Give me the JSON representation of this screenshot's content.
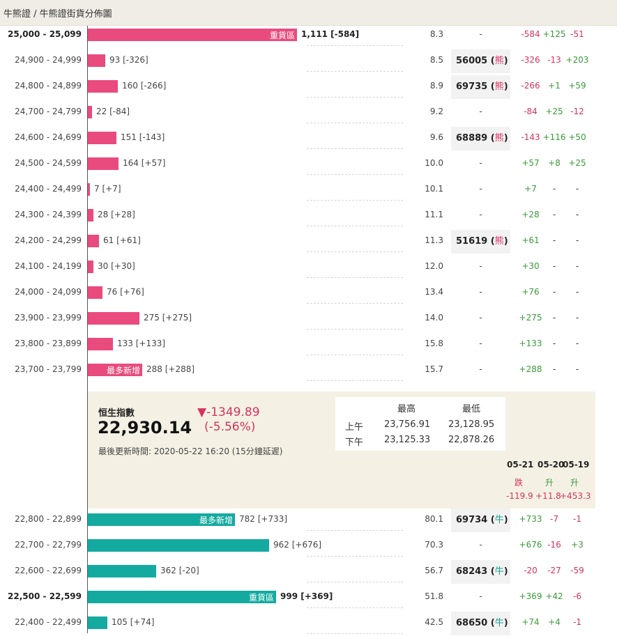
{
  "breadcrumb": "牛熊證 / 牛熊證街貨分佈圖",
  "colors": {
    "bear": "#e94b7e",
    "bull": "#15aaa0",
    "down": "#d6325f",
    "up": "#3a9a3a"
  },
  "bear_rows": [
    {
      "range": "25,000 - 25,099",
      "bold": true,
      "size": 1111,
      "count_text": "1,111 [-584]",
      "tag": "重貨區",
      "pct": "8.3",
      "code": "",
      "code_type": "",
      "d1": "-584",
      "d2": "+125",
      "d3": "-51"
    },
    {
      "range": "24,900 - 24,999",
      "bold": false,
      "size": 93,
      "count_text": "93 [-326]",
      "tag": "",
      "pct": "8.5",
      "code": "56005",
      "code_type": "熊",
      "d1": "-326",
      "d2": "-13",
      "d3": "+203"
    },
    {
      "range": "24,800 - 24,899",
      "bold": false,
      "size": 160,
      "count_text": "160 [-266]",
      "tag": "",
      "pct": "8.9",
      "code": "69735",
      "code_type": "熊",
      "d1": "-266",
      "d2": "+1",
      "d3": "+59"
    },
    {
      "range": "24,700 - 24,799",
      "bold": false,
      "size": 22,
      "count_text": "22 [-84]",
      "tag": "",
      "pct": "9.2",
      "code": "",
      "code_type": "",
      "d1": "-84",
      "d2": "+25",
      "d3": "-12"
    },
    {
      "range": "24,600 - 24,699",
      "bold": false,
      "size": 151,
      "count_text": "151 [-143]",
      "tag": "",
      "pct": "9.6",
      "code": "68889",
      "code_type": "熊",
      "d1": "-143",
      "d2": "+116",
      "d3": "+50"
    },
    {
      "range": "24,500 - 24,599",
      "bold": false,
      "size": 164,
      "count_text": "164 [+57]",
      "tag": "",
      "pct": "10.0",
      "code": "",
      "code_type": "",
      "d1": "+57",
      "d2": "+8",
      "d3": "+25"
    },
    {
      "range": "24,400 - 24,499",
      "bold": false,
      "size": 7,
      "count_text": "7 [+7]",
      "tag": "",
      "pct": "10.1",
      "code": "",
      "code_type": "",
      "d1": "+7",
      "d2": "-",
      "d3": "-"
    },
    {
      "range": "24,300 - 24,399",
      "bold": false,
      "size": 28,
      "count_text": "28 [+28]",
      "tag": "",
      "pct": "11.1",
      "code": "",
      "code_type": "",
      "d1": "+28",
      "d2": "-",
      "d3": "-"
    },
    {
      "range": "24,200 - 24,299",
      "bold": false,
      "size": 61,
      "count_text": "61 [+61]",
      "tag": "",
      "pct": "11.3",
      "code": "51619",
      "code_type": "熊",
      "d1": "+61",
      "d2": "-",
      "d3": "-"
    },
    {
      "range": "24,100 - 24,199",
      "bold": false,
      "size": 30,
      "count_text": "30 [+30]",
      "tag": "",
      "pct": "12.0",
      "code": "",
      "code_type": "",
      "d1": "+30",
      "d2": "-",
      "d3": "-"
    },
    {
      "range": "24,000 - 24,099",
      "bold": false,
      "size": 76,
      "count_text": "76 [+76]",
      "tag": "",
      "pct": "13.4",
      "code": "",
      "code_type": "",
      "d1": "+76",
      "d2": "-",
      "d3": "-"
    },
    {
      "range": "23,900 - 23,999",
      "bold": false,
      "size": 275,
      "count_text": "275 [+275]",
      "tag": "",
      "pct": "14.0",
      "code": "",
      "code_type": "",
      "d1": "+275",
      "d2": "-",
      "d3": "-"
    },
    {
      "range": "23,800 - 23,899",
      "bold": false,
      "size": 133,
      "count_text": "133 [+133]",
      "tag": "",
      "pct": "15.8",
      "code": "",
      "code_type": "",
      "d1": "+133",
      "d2": "-",
      "d3": "-"
    },
    {
      "range": "23,700 - 23,799",
      "bold": false,
      "size": 288,
      "count_text": "288 [+288]",
      "tag": "最多新增",
      "pct": "15.7",
      "code": "",
      "code_type": "",
      "d1": "+288",
      "d2": "-",
      "d3": "-"
    }
  ],
  "index": {
    "label": "恒生指數",
    "value": "22,930.14",
    "change": "▼-1349.89",
    "change_pct": "(-5.56%)",
    "updated": "最後更新時間: 2020-05-22 16:20 (15分鐘延遲)",
    "hl_header_high": "最高",
    "hl_header_low": "最低",
    "am_label": "上午",
    "am_high": "23,756.91",
    "am_low": "23,128.95",
    "pm_label": "下午",
    "pm_high": "23,125.33",
    "pm_low": "22,878.26"
  },
  "history": [
    {
      "date": "05-21",
      "word": "跌",
      "dir": "down",
      "value": "-119.9"
    },
    {
      "date": "05-20",
      "word": "升",
      "dir": "up",
      "value": "+11.8"
    },
    {
      "date": "05-19",
      "word": "升",
      "dir": "up",
      "value": "+453.3"
    }
  ],
  "bull_rows": [
    {
      "range": "22,800 - 22,899",
      "bold": false,
      "size": 782,
      "count_text": "782 [+733]",
      "tag": "最多新增",
      "pct": "80.1",
      "code": "69734",
      "code_type": "牛",
      "d1": "+733",
      "d2": "-7",
      "d3": "-1"
    },
    {
      "range": "22,700 - 22,799",
      "bold": false,
      "size": 962,
      "count_text": "962 [+676]",
      "tag": "",
      "pct": "70.3",
      "code": "",
      "code_type": "",
      "d1": "+676",
      "d2": "-16",
      "d3": "+3"
    },
    {
      "range": "22,600 - 22,699",
      "bold": false,
      "size": 362,
      "count_text": "362 [-20]",
      "tag": "",
      "pct": "56.7",
      "code": "68243",
      "code_type": "牛",
      "d1": "-20",
      "d2": "-27",
      "d3": "-59"
    },
    {
      "range": "22,500 - 22,599",
      "bold": true,
      "size": 999,
      "count_text": "999 [+369]",
      "tag": "重貨區",
      "pct": "51.8",
      "code": "",
      "code_type": "",
      "d1": "+369",
      "d2": "+42",
      "d3": "-6"
    },
    {
      "range": "22,400 - 22,499",
      "bold": false,
      "size": 105,
      "count_text": "105 [+74]",
      "tag": "",
      "pct": "42.5",
      "code": "68650",
      "code_type": "牛",
      "d1": "+74",
      "d2": "+4",
      "d3": "-1"
    }
  ]
}
